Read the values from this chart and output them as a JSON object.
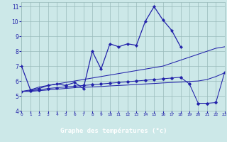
{
  "title": "Graphe des températures (°c)",
  "background_color": "#cce8e8",
  "plot_bg": "#cce8e8",
  "grid_color": "#99bbbb",
  "line_color": "#2222aa",
  "xlabel_bg": "#2222aa",
  "xlabel_fg": "#ffffff",
  "xlim": [
    0,
    23
  ],
  "ylim": [
    4,
    11.3
  ],
  "yticks": [
    4,
    5,
    6,
    7,
    8,
    9,
    10,
    11
  ],
  "xticks": [
    0,
    1,
    2,
    3,
    4,
    5,
    6,
    7,
    8,
    9,
    10,
    11,
    12,
    13,
    14,
    15,
    16,
    17,
    18,
    19,
    20,
    21,
    22,
    23
  ],
  "line1_x": [
    0,
    1,
    2,
    3,
    4,
    5,
    6,
    7,
    8,
    9,
    10,
    11,
    12,
    13,
    14,
    15,
    16,
    17,
    18
  ],
  "line1_y": [
    7.0,
    5.4,
    5.5,
    5.7,
    5.8,
    5.7,
    5.9,
    5.5,
    8.0,
    6.8,
    8.5,
    8.3,
    8.5,
    8.4,
    10.0,
    11.0,
    10.1,
    9.4,
    8.3
  ],
  "line2_x": [
    0,
    1,
    2,
    3,
    4,
    5,
    6,
    7,
    8,
    9,
    10,
    11,
    12,
    13,
    14,
    15,
    16,
    17,
    18,
    19,
    20,
    21,
    22,
    23
  ],
  "line2_y": [
    5.3,
    5.4,
    5.6,
    5.7,
    5.8,
    5.9,
    6.0,
    6.1,
    6.2,
    6.3,
    6.4,
    6.5,
    6.6,
    6.7,
    6.8,
    6.9,
    7.0,
    7.2,
    7.4,
    7.6,
    7.8,
    8.0,
    8.2,
    8.3
  ],
  "line3_x": [
    0,
    1,
    2,
    3,
    4,
    5,
    6,
    7,
    8,
    9,
    10,
    11,
    12,
    13,
    14,
    15,
    16,
    17,
    18,
    19,
    20,
    21,
    22,
    23
  ],
  "line3_y": [
    5.3,
    5.35,
    5.4,
    5.5,
    5.55,
    5.6,
    5.65,
    5.7,
    5.75,
    5.8,
    5.85,
    5.9,
    5.95,
    6.0,
    6.05,
    6.1,
    6.15,
    6.2,
    6.25,
    5.8,
    4.5,
    4.5,
    4.55,
    6.6
  ],
  "line4_x": [
    0,
    1,
    2,
    3,
    4,
    5,
    6,
    7,
    8,
    9,
    10,
    11,
    12,
    13,
    14,
    15,
    16,
    17,
    18,
    19,
    20,
    21,
    22,
    23
  ],
  "line4_y": [
    5.3,
    5.3,
    5.35,
    5.4,
    5.45,
    5.5,
    5.55,
    5.58,
    5.6,
    5.63,
    5.67,
    5.7,
    5.73,
    5.77,
    5.8,
    5.83,
    5.87,
    5.9,
    5.93,
    5.97,
    6.0,
    6.1,
    6.3,
    6.55
  ]
}
